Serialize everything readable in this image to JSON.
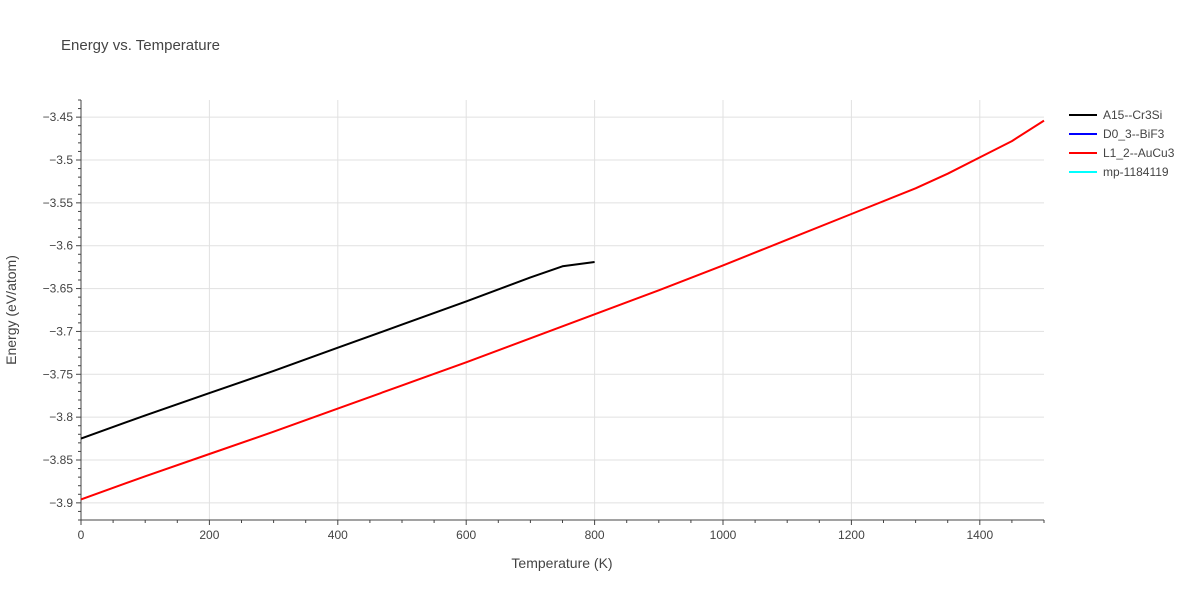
{
  "chart_data": {
    "type": "line",
    "title": "Energy vs. Temperature",
    "xlabel": "Temperature (K)",
    "ylabel": "Energy (eV/atom)",
    "xlim": [
      0,
      1500
    ],
    "ylim": [
      -3.92,
      -3.43
    ],
    "xticks": [
      0,
      200,
      400,
      600,
      800,
      1000,
      1200,
      1400
    ],
    "xtick_labels": [
      "0",
      "200",
      "400",
      "600",
      "800",
      "1000",
      "1200",
      "1400"
    ],
    "yticks": [
      -3.9,
      -3.85,
      -3.8,
      -3.75,
      -3.7,
      -3.65,
      -3.6,
      -3.55,
      -3.5,
      -3.45
    ],
    "ytick_labels": [
      "−3.9",
      "−3.85",
      "−3.8",
      "−3.75",
      "−3.7",
      "−3.65",
      "−3.6",
      "−3.55",
      "−3.5",
      "−3.45"
    ],
    "grid": true,
    "legend_position": "right",
    "series": [
      {
        "name": "A15--Cr3Si",
        "color": "#000000",
        "x": [
          0,
          100,
          200,
          300,
          400,
          500,
          600,
          700,
          750,
          800
        ],
        "y": [
          -3.825,
          -3.798,
          -3.772,
          -3.746,
          -3.719,
          -3.692,
          -3.665,
          -3.637,
          -3.624,
          -3.619
        ]
      },
      {
        "name": "D0_3--BiF3",
        "color": "#0000ff",
        "x": [],
        "y": []
      },
      {
        "name": "L1_2--AuCu3",
        "color": "#ff0000",
        "x": [
          0,
          100,
          200,
          300,
          400,
          500,
          600,
          700,
          800,
          900,
          1000,
          1100,
          1200,
          1300,
          1350,
          1400,
          1450,
          1500
        ],
        "y": [
          -3.896,
          -3.869,
          -3.843,
          -3.817,
          -3.79,
          -3.763,
          -3.736,
          -3.708,
          -3.68,
          -3.652,
          -3.623,
          -3.593,
          -3.563,
          -3.533,
          -3.516,
          -3.497,
          -3.478,
          -3.454
        ]
      },
      {
        "name": "mp-1184119",
        "color": "#00ffff",
        "x": [],
        "y": []
      }
    ]
  }
}
